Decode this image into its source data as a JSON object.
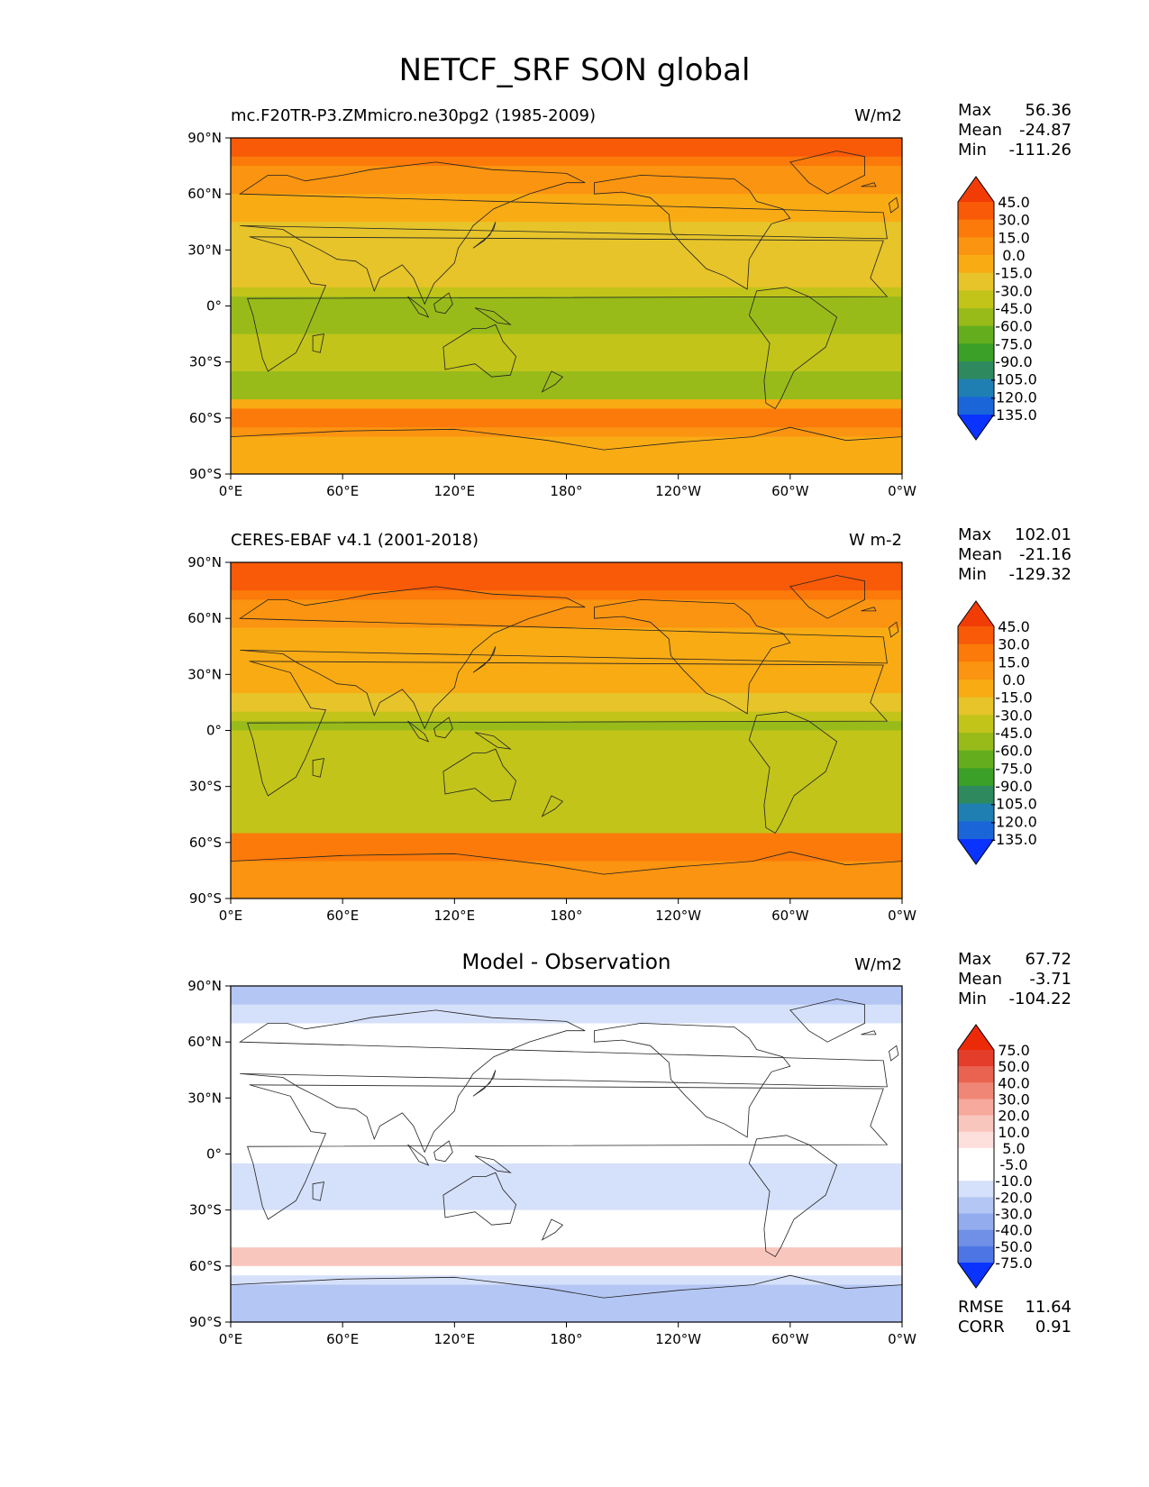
{
  "figure": {
    "title": "NETCF_SRF SON global"
  },
  "colors": {
    "warm_scale": [
      "#0a33ff",
      "#1a66d9",
      "#1f7fb3",
      "#2e8a5e",
      "#3aa028",
      "#64ae1e",
      "#98bb1a",
      "#c2c41a",
      "#e6c42a",
      "#f9ab14",
      "#fb9410",
      "#fb7a0a",
      "#f85a08",
      "#f23c06"
    ],
    "diff_scale": [
      "#0a33ff",
      "#2f58ec",
      "#4e75e4",
      "#6f90e6",
      "#93acee",
      "#b4c6f4",
      "#d5e0fa",
      "#ffffff",
      "#ffffff",
      "#fde0dc",
      "#f9c6be",
      "#f6a99c",
      "#f08776",
      "#ea6350",
      "#e43d2a",
      "#ec2a08"
    ],
    "coast": "#222222"
  },
  "chart_data": [
    {
      "type": "heatmap",
      "title": "mc.F20TR-P3.ZMmicro.ne30pg2 (1985-2009)",
      "units": "W/m2",
      "stats": {
        "max_label": "Max",
        "max": "56.36",
        "mean_label": "Mean",
        "mean": "-24.87",
        "min_label": "Min",
        "min": "-111.26"
      },
      "x_ticks": [
        "0°E",
        "60°E",
        "120°E",
        "180°",
        "120°W",
        "60°W",
        "0°W"
      ],
      "y_ticks": [
        "90°N",
        "60°N",
        "30°N",
        "0°",
        "30°S",
        "60°S",
        "90°S"
      ],
      "xlim": [
        0,
        360
      ],
      "ylim": [
        -90,
        90
      ],
      "colorbar_levels": [
        "45.0",
        "30.0",
        "15.0",
        "0.0",
        "-15.0",
        "-30.0",
        "-45.0",
        "-60.0",
        "-75.0",
        "-90.0",
        "-105.0",
        "-120.0",
        "-135.0"
      ],
      "colormap": "warm",
      "field_profile": [
        [
          -90,
          -10
        ],
        [
          -75,
          -10
        ],
        [
          -65,
          18
        ],
        [
          -55,
          22
        ],
        [
          -50,
          -50
        ],
        [
          -40,
          -48
        ],
        [
          -30,
          -42
        ],
        [
          -20,
          -40
        ],
        [
          -10,
          -48
        ],
        [
          -5,
          -62
        ],
        [
          0,
          -50
        ],
        [
          5,
          -55
        ],
        [
          10,
          -30
        ],
        [
          20,
          -22
        ],
        [
          30,
          -20
        ],
        [
          40,
          -18
        ],
        [
          50,
          -8
        ],
        [
          60,
          0
        ],
        [
          70,
          5
        ],
        [
          80,
          30
        ],
        [
          90,
          42
        ]
      ]
    },
    {
      "type": "heatmap",
      "title": "CERES-EBAF v4.1 (2001-2018)",
      "units": "W m-2",
      "stats": {
        "max_label": "Max",
        "max": "102.01",
        "mean_label": "Mean",
        "mean": "-21.16",
        "min_label": "Min",
        "min": "-129.32"
      },
      "x_ticks": [
        "0°E",
        "60°E",
        "120°E",
        "180°",
        "120°W",
        "60°W",
        "0°W"
      ],
      "y_ticks": [
        "90°N",
        "60°N",
        "30°N",
        "0°",
        "30°S",
        "60°S",
        "90°S"
      ],
      "xlim": [
        0,
        360
      ],
      "ylim": [
        -90,
        90
      ],
      "colorbar_levels": [
        "45.0",
        "30.0",
        "15.0",
        "0.0",
        "-15.0",
        "-30.0",
        "-45.0",
        "-60.0",
        "-75.0",
        "-90.0",
        "-105.0",
        "-120.0",
        "-135.0"
      ],
      "colormap": "warm",
      "field_profile": [
        [
          -90,
          5
        ],
        [
          -75,
          8
        ],
        [
          -65,
          25
        ],
        [
          -58,
          30
        ],
        [
          -52,
          -45
        ],
        [
          -40,
          -45
        ],
        [
          -30,
          -38
        ],
        [
          -20,
          -30
        ],
        [
          -10,
          -40
        ],
        [
          -5,
          -50
        ],
        [
          0,
          -40
        ],
        [
          5,
          -58
        ],
        [
          10,
          -32
        ],
        [
          20,
          -15
        ],
        [
          30,
          -10
        ],
        [
          40,
          -12
        ],
        [
          50,
          -2
        ],
        [
          60,
          5
        ],
        [
          70,
          15
        ],
        [
          80,
          35
        ],
        [
          90,
          45
        ]
      ]
    },
    {
      "type": "heatmap",
      "title": "Model - Observation",
      "units": "W/m2",
      "stats": {
        "max_label": "Max",
        "max": "67.72",
        "mean_label": "Mean",
        "mean": "-3.71",
        "min_label": "Min",
        "min": "-104.22"
      },
      "extra_stats": {
        "rmse_label": "RMSE",
        "rmse": "11.64",
        "corr_label": "CORR",
        "corr": "0.91"
      },
      "x_ticks": [
        "0°E",
        "60°E",
        "120°E",
        "180°",
        "120°W",
        "60°W",
        "0°W"
      ],
      "y_ticks": [
        "90°N",
        "60°N",
        "30°N",
        "0°",
        "30°S",
        "60°S",
        "90°S"
      ],
      "xlim": [
        0,
        360
      ],
      "ylim": [
        -90,
        90
      ],
      "colorbar_levels": [
        "75.0",
        "50.0",
        "40.0",
        "30.0",
        "20.0",
        "10.0",
        "5.0",
        "-5.0",
        "-10.0",
        "-20.0",
        "-30.0",
        "-40.0",
        "-50.0",
        "-75.0"
      ],
      "colormap": "diff",
      "field_profile": [
        [
          -90,
          -15
        ],
        [
          -75,
          -18
        ],
        [
          -70,
          -12
        ],
        [
          -65,
          -5
        ],
        [
          -60,
          12
        ],
        [
          -55,
          15
        ],
        [
          -50,
          5
        ],
        [
          -40,
          -3
        ],
        [
          -30,
          -5
        ],
        [
          -20,
          -8
        ],
        [
          -10,
          -8
        ],
        [
          -5,
          -12
        ],
        [
          0,
          10
        ],
        [
          5,
          -8
        ],
        [
          10,
          2
        ],
        [
          20,
          -5
        ],
        [
          30,
          -5
        ],
        [
          40,
          -4
        ],
        [
          50,
          -2
        ],
        [
          60,
          2
        ],
        [
          70,
          -5
        ],
        [
          80,
          -10
        ],
        [
          90,
          -12
        ]
      ]
    }
  ]
}
